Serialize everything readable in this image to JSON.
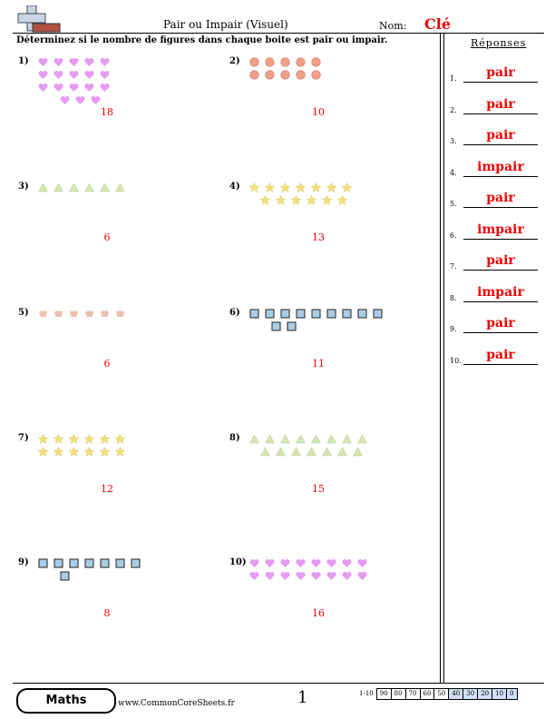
{
  "header": {
    "title": "Pair ou Impair (Visuel)",
    "name_label": "Nom:",
    "name_value": "Clé",
    "instructions": "Déterminez si le nombre de figures dans chaque boite est pair ou impair."
  },
  "problems": [
    {
      "label": "1)",
      "shape": "heart-icon",
      "color": "#e59bf2",
      "rows": [
        5,
        5,
        5,
        3
      ],
      "count": "18"
    },
    {
      "label": "2)",
      "shape": "circle-icon",
      "color": "#f0a08a",
      "rows": [
        5,
        5
      ],
      "count": "10"
    },
    {
      "label": "3)",
      "shape": "triangle-icon",
      "color": "#d6e6b0",
      "rows": [
        6
      ],
      "count": "6"
    },
    {
      "label": "4)",
      "shape": "star-icon",
      "color": "#f3e27a",
      "rows": [
        7,
        6
      ],
      "count": "13"
    },
    {
      "label": "5)",
      "shape": "cupcake-icon",
      "color": "#eebfae",
      "rows": [
        6
      ],
      "count": "6"
    },
    {
      "label": "6)",
      "shape": "square-icon",
      "color": "#a9cde6",
      "rows": [
        9,
        2
      ],
      "count": "11"
    },
    {
      "label": "7)",
      "shape": "star-icon",
      "color": "#f3e27a",
      "rows": [
        6,
        6
      ],
      "count": "12"
    },
    {
      "label": "8)",
      "shape": "triangle-icon",
      "color": "#d6e6b0",
      "rows": [
        8,
        7
      ],
      "count": "15"
    },
    {
      "label": "9)",
      "shape": "square-icon",
      "color": "#a9cde6",
      "rows": [
        7,
        1
      ],
      "count": "8"
    },
    {
      "label": "10)",
      "shape": "heart-icon",
      "color": "#e59bf2",
      "rows": [
        8,
        8
      ],
      "count": "16"
    }
  ],
  "answers": {
    "heading": "Réponses",
    "items": [
      {
        "num": "1.",
        "value": "pair"
      },
      {
        "num": "2.",
        "value": "pair"
      },
      {
        "num": "3.",
        "value": "pair"
      },
      {
        "num": "4.",
        "value": "impair"
      },
      {
        "num": "5.",
        "value": "pair"
      },
      {
        "num": "6.",
        "value": "impair"
      },
      {
        "num": "7.",
        "value": "pair"
      },
      {
        "num": "8.",
        "value": "impair"
      },
      {
        "num": "9.",
        "value": "pair"
      },
      {
        "num": "10.",
        "value": "pair"
      }
    ]
  },
  "footer": {
    "subject": "Maths",
    "website": "www.CommonCoreSheets.fr",
    "page": "1",
    "score_label": "1-10",
    "scores": [
      "90",
      "80",
      "70",
      "60",
      "50",
      "40",
      "30",
      "20",
      "10",
      "0"
    ]
  },
  "colors": {
    "answer_red": "#e00000",
    "score_highlight": "#cfe0f5"
  }
}
